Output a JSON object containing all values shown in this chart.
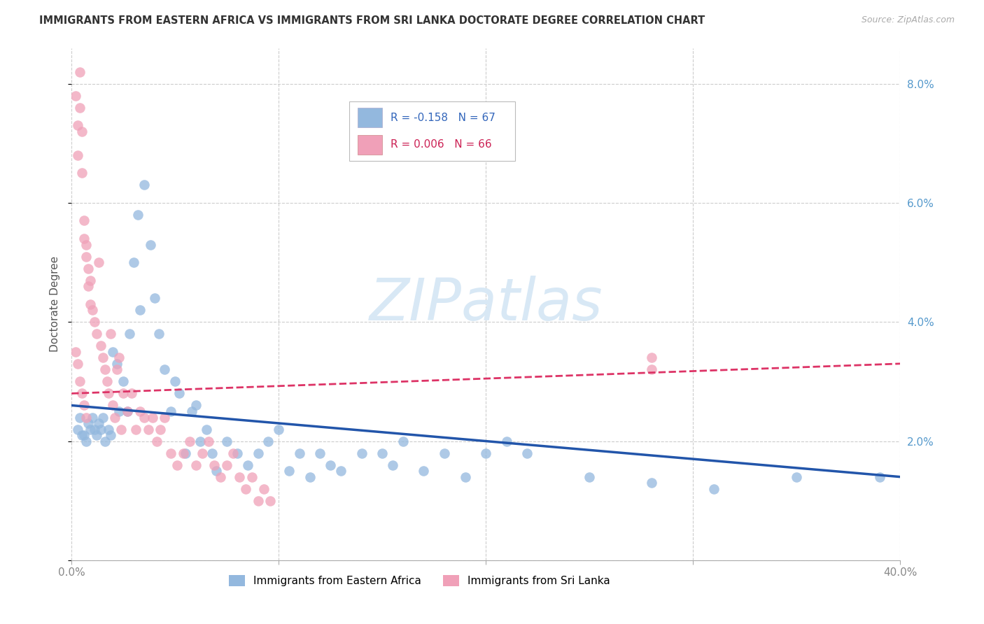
{
  "title": "IMMIGRANTS FROM EASTERN AFRICA VS IMMIGRANTS FROM SRI LANKA DOCTORATE DEGREE CORRELATION CHART",
  "source": "Source: ZipAtlas.com",
  "ylabel": "Doctorate Degree",
  "xlim": [
    0.0,
    0.4
  ],
  "ylim": [
    0.0,
    0.086
  ],
  "xticks": [
    0.0,
    0.1,
    0.2,
    0.3,
    0.4
  ],
  "yticks": [
    0.0,
    0.02,
    0.04,
    0.06,
    0.08
  ],
  "xtick_labels": [
    "0.0%",
    "",
    "",
    "",
    "40.0%"
  ],
  "ytick_labels_right": [
    "",
    "2.0%",
    "4.0%",
    "6.0%",
    "8.0%"
  ],
  "legend_labels": [
    "Immigrants from Eastern Africa",
    "Immigrants from Sri Lanka"
  ],
  "blue_R": -0.158,
  "blue_N": 67,
  "pink_R": 0.006,
  "pink_N": 66,
  "blue_color": "#93b8de",
  "pink_color": "#f0a0b8",
  "blue_line_color": "#2255aa",
  "pink_line_color": "#dd3366",
  "watermark_color": "#d8e8f5",
  "background_color": "#ffffff",
  "grid_color": "#cccccc",
  "blue_trend_x0": 0.0,
  "blue_trend_y0": 0.026,
  "blue_trend_x1": 0.4,
  "blue_trend_y1": 0.014,
  "pink_trend_x0": 0.0,
  "pink_trend_y0": 0.028,
  "pink_trend_x1": 0.4,
  "pink_trend_y1": 0.033,
  "blue_x": [
    0.003,
    0.004,
    0.005,
    0.006,
    0.007,
    0.008,
    0.009,
    0.01,
    0.011,
    0.012,
    0.013,
    0.014,
    0.015,
    0.016,
    0.018,
    0.019,
    0.02,
    0.022,
    0.023,
    0.025,
    0.027,
    0.028,
    0.03,
    0.032,
    0.033,
    0.035,
    0.038,
    0.04,
    0.042,
    0.045,
    0.048,
    0.05,
    0.052,
    0.055,
    0.058,
    0.06,
    0.062,
    0.065,
    0.068,
    0.07,
    0.075,
    0.08,
    0.085,
    0.09,
    0.095,
    0.1,
    0.105,
    0.11,
    0.115,
    0.12,
    0.125,
    0.13,
    0.14,
    0.15,
    0.155,
    0.16,
    0.17,
    0.18,
    0.19,
    0.2,
    0.21,
    0.22,
    0.25,
    0.28,
    0.31,
    0.35,
    0.39
  ],
  "blue_y": [
    0.022,
    0.024,
    0.021,
    0.021,
    0.02,
    0.023,
    0.022,
    0.024,
    0.022,
    0.021,
    0.023,
    0.022,
    0.024,
    0.02,
    0.022,
    0.021,
    0.035,
    0.033,
    0.025,
    0.03,
    0.025,
    0.038,
    0.05,
    0.058,
    0.042,
    0.063,
    0.053,
    0.044,
    0.038,
    0.032,
    0.025,
    0.03,
    0.028,
    0.018,
    0.025,
    0.026,
    0.02,
    0.022,
    0.018,
    0.015,
    0.02,
    0.018,
    0.016,
    0.018,
    0.02,
    0.022,
    0.015,
    0.018,
    0.014,
    0.018,
    0.016,
    0.015,
    0.018,
    0.018,
    0.016,
    0.02,
    0.015,
    0.018,
    0.014,
    0.018,
    0.02,
    0.018,
    0.014,
    0.013,
    0.012,
    0.014,
    0.014
  ],
  "pink_x": [
    0.002,
    0.003,
    0.003,
    0.004,
    0.004,
    0.005,
    0.005,
    0.006,
    0.006,
    0.007,
    0.007,
    0.008,
    0.008,
    0.009,
    0.009,
    0.01,
    0.011,
    0.012,
    0.013,
    0.014,
    0.015,
    0.016,
    0.017,
    0.018,
    0.019,
    0.02,
    0.021,
    0.022,
    0.023,
    0.024,
    0.025,
    0.027,
    0.029,
    0.031,
    0.033,
    0.035,
    0.037,
    0.039,
    0.041,
    0.043,
    0.045,
    0.048,
    0.051,
    0.054,
    0.057,
    0.06,
    0.063,
    0.066,
    0.069,
    0.072,
    0.075,
    0.078,
    0.081,
    0.084,
    0.087,
    0.09,
    0.093,
    0.096,
    0.002,
    0.003,
    0.004,
    0.005,
    0.006,
    0.007,
    0.28,
    0.28
  ],
  "pink_y": [
    0.078,
    0.073,
    0.068,
    0.082,
    0.076,
    0.072,
    0.065,
    0.057,
    0.054,
    0.053,
    0.051,
    0.049,
    0.046,
    0.043,
    0.047,
    0.042,
    0.04,
    0.038,
    0.05,
    0.036,
    0.034,
    0.032,
    0.03,
    0.028,
    0.038,
    0.026,
    0.024,
    0.032,
    0.034,
    0.022,
    0.028,
    0.025,
    0.028,
    0.022,
    0.025,
    0.024,
    0.022,
    0.024,
    0.02,
    0.022,
    0.024,
    0.018,
    0.016,
    0.018,
    0.02,
    0.016,
    0.018,
    0.02,
    0.016,
    0.014,
    0.016,
    0.018,
    0.014,
    0.012,
    0.014,
    0.01,
    0.012,
    0.01,
    0.035,
    0.033,
    0.03,
    0.028,
    0.026,
    0.024,
    0.032,
    0.034
  ]
}
